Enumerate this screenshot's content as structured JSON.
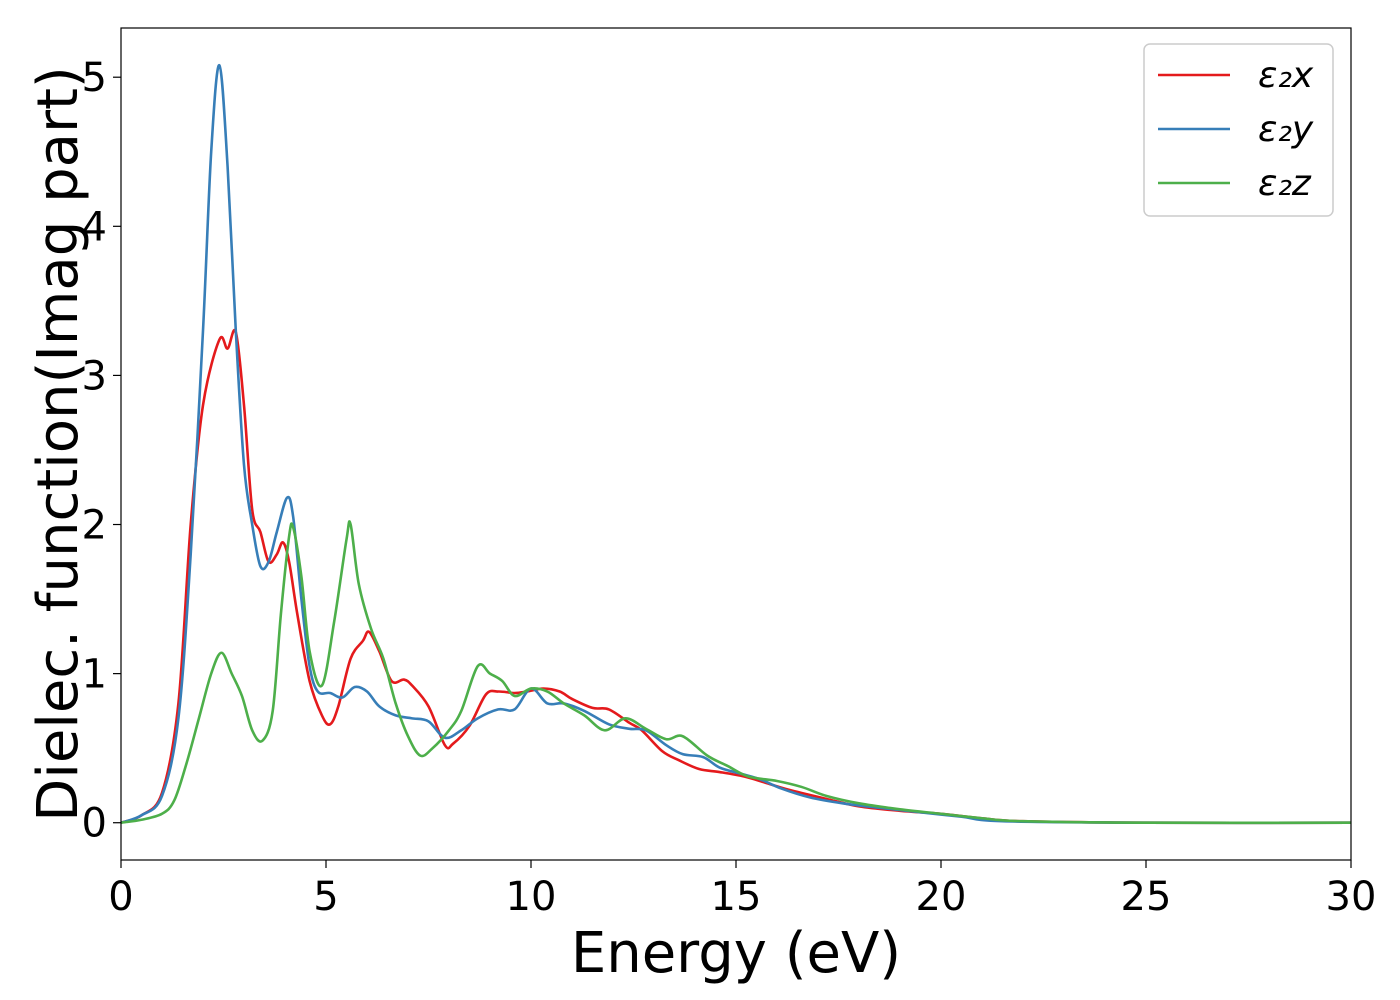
{
  "chart_data": {
    "type": "line",
    "xlabel": "Energy (eV)",
    "ylabel": "Dielec. function(Imag part)",
    "xlim": [
      0,
      30
    ],
    "ylim": [
      -0.25,
      5.33
    ],
    "x_ticks": [
      0,
      5,
      10,
      15,
      20,
      25,
      30
    ],
    "y_ticks": [
      0,
      1,
      2,
      3,
      4,
      5
    ],
    "grid": false,
    "legend_position": "top-right",
    "series": [
      {
        "name": "ε₂x",
        "color": "#e41a1c",
        "points": [
          [
            0,
            0
          ],
          [
            0.5,
            0.05
          ],
          [
            1.0,
            0.2
          ],
          [
            1.4,
            0.8
          ],
          [
            1.7,
            2.0
          ],
          [
            2.0,
            2.8
          ],
          [
            2.4,
            3.24
          ],
          [
            2.6,
            3.18
          ],
          [
            2.8,
            3.29
          ],
          [
            3.0,
            2.8
          ],
          [
            3.2,
            2.1
          ],
          [
            3.4,
            1.95
          ],
          [
            3.6,
            1.75
          ],
          [
            3.8,
            1.8
          ],
          [
            3.95,
            1.88
          ],
          [
            4.1,
            1.75
          ],
          [
            4.3,
            1.4
          ],
          [
            4.6,
            0.95
          ],
          [
            4.9,
            0.72
          ],
          [
            5.1,
            0.66
          ],
          [
            5.3,
            0.78
          ],
          [
            5.6,
            1.1
          ],
          [
            5.9,
            1.22
          ],
          [
            6.05,
            1.28
          ],
          [
            6.3,
            1.15
          ],
          [
            6.6,
            0.95
          ],
          [
            6.9,
            0.96
          ],
          [
            7.1,
            0.92
          ],
          [
            7.5,
            0.78
          ],
          [
            7.9,
            0.52
          ],
          [
            8.1,
            0.53
          ],
          [
            8.5,
            0.65
          ],
          [
            8.9,
            0.86
          ],
          [
            9.2,
            0.88
          ],
          [
            9.6,
            0.87
          ],
          [
            9.9,
            0.88
          ],
          [
            10.3,
            0.9
          ],
          [
            10.7,
            0.88
          ],
          [
            11.0,
            0.83
          ],
          [
            11.5,
            0.77
          ],
          [
            11.9,
            0.76
          ],
          [
            12.4,
            0.67
          ],
          [
            12.7,
            0.62
          ],
          [
            13.2,
            0.48
          ],
          [
            13.6,
            0.42
          ],
          [
            14.1,
            0.36
          ],
          [
            14.6,
            0.34
          ],
          [
            15.2,
            0.31
          ],
          [
            15.7,
            0.27
          ],
          [
            16.3,
            0.22
          ],
          [
            17.2,
            0.16
          ],
          [
            18.0,
            0.11
          ],
          [
            19.0,
            0.08
          ],
          [
            20.0,
            0.06
          ],
          [
            21.0,
            0.03
          ],
          [
            22.0,
            0.01
          ],
          [
            25.0,
            0.0
          ],
          [
            30.0,
            0.0
          ]
        ]
      },
      {
        "name": "ε₂y",
        "color": "#377eb8",
        "points": [
          [
            0,
            0
          ],
          [
            0.5,
            0.05
          ],
          [
            1.0,
            0.18
          ],
          [
            1.4,
            0.7
          ],
          [
            1.7,
            1.8
          ],
          [
            2.0,
            3.3
          ],
          [
            2.2,
            4.5
          ],
          [
            2.4,
            5.08
          ],
          [
            2.6,
            4.4
          ],
          [
            2.8,
            3.3
          ],
          [
            3.0,
            2.4
          ],
          [
            3.2,
            2.0
          ],
          [
            3.4,
            1.72
          ],
          [
            3.6,
            1.75
          ],
          [
            3.8,
            1.95
          ],
          [
            4.05,
            2.18
          ],
          [
            4.2,
            2.05
          ],
          [
            4.4,
            1.5
          ],
          [
            4.6,
            1.05
          ],
          [
            4.8,
            0.88
          ],
          [
            5.1,
            0.87
          ],
          [
            5.4,
            0.84
          ],
          [
            5.7,
            0.91
          ],
          [
            6.0,
            0.88
          ],
          [
            6.3,
            0.78
          ],
          [
            6.7,
            0.72
          ],
          [
            7.1,
            0.7
          ],
          [
            7.5,
            0.68
          ],
          [
            7.9,
            0.57
          ],
          [
            8.3,
            0.62
          ],
          [
            8.7,
            0.7
          ],
          [
            9.2,
            0.76
          ],
          [
            9.6,
            0.76
          ],
          [
            10.0,
            0.9
          ],
          [
            10.4,
            0.8
          ],
          [
            10.8,
            0.8
          ],
          [
            11.3,
            0.75
          ],
          [
            11.9,
            0.66
          ],
          [
            12.4,
            0.63
          ],
          [
            12.8,
            0.62
          ],
          [
            13.3,
            0.52
          ],
          [
            13.7,
            0.46
          ],
          [
            14.2,
            0.44
          ],
          [
            14.6,
            0.37
          ],
          [
            15.1,
            0.33
          ],
          [
            15.6,
            0.29
          ],
          [
            16.1,
            0.23
          ],
          [
            16.8,
            0.17
          ],
          [
            17.6,
            0.13
          ],
          [
            18.5,
            0.1
          ],
          [
            19.5,
            0.07
          ],
          [
            20.5,
            0.04
          ],
          [
            21.5,
            0.01
          ],
          [
            25.0,
            0.0
          ],
          [
            30.0,
            0.0
          ]
        ]
      },
      {
        "name": "ε₂z",
        "color": "#4daf4a",
        "points": [
          [
            0,
            0
          ],
          [
            0.5,
            0.02
          ],
          [
            1.0,
            0.06
          ],
          [
            1.3,
            0.15
          ],
          [
            1.6,
            0.4
          ],
          [
            1.9,
            0.7
          ],
          [
            2.2,
            1.0
          ],
          [
            2.45,
            1.14
          ],
          [
            2.7,
            1.0
          ],
          [
            2.95,
            0.85
          ],
          [
            3.2,
            0.62
          ],
          [
            3.45,
            0.55
          ],
          [
            3.7,
            0.75
          ],
          [
            3.9,
            1.4
          ],
          [
            4.1,
            1.92
          ],
          [
            4.2,
            1.98
          ],
          [
            4.4,
            1.65
          ],
          [
            4.6,
            1.15
          ],
          [
            4.9,
            0.92
          ],
          [
            5.2,
            1.35
          ],
          [
            5.5,
            1.9
          ],
          [
            5.6,
            2.0
          ],
          [
            5.8,
            1.6
          ],
          [
            6.1,
            1.3
          ],
          [
            6.4,
            1.1
          ],
          [
            6.7,
            0.8
          ],
          [
            7.0,
            0.58
          ],
          [
            7.3,
            0.45
          ],
          [
            7.6,
            0.5
          ],
          [
            8.0,
            0.62
          ],
          [
            8.3,
            0.75
          ],
          [
            8.7,
            1.05
          ],
          [
            9.0,
            1.0
          ],
          [
            9.3,
            0.95
          ],
          [
            9.6,
            0.85
          ],
          [
            10.0,
            0.9
          ],
          [
            10.4,
            0.88
          ],
          [
            10.8,
            0.8
          ],
          [
            11.3,
            0.72
          ],
          [
            11.8,
            0.62
          ],
          [
            12.3,
            0.7
          ],
          [
            12.8,
            0.63
          ],
          [
            13.3,
            0.56
          ],
          [
            13.7,
            0.58
          ],
          [
            14.3,
            0.45
          ],
          [
            14.8,
            0.38
          ],
          [
            15.3,
            0.31
          ],
          [
            16.0,
            0.28
          ],
          [
            16.6,
            0.24
          ],
          [
            17.2,
            0.18
          ],
          [
            18.0,
            0.13
          ],
          [
            19.0,
            0.09
          ],
          [
            20.0,
            0.06
          ],
          [
            21.0,
            0.03
          ],
          [
            22.0,
            0.01
          ],
          [
            25.0,
            0.0
          ],
          [
            30.0,
            0.0
          ]
        ]
      }
    ]
  }
}
